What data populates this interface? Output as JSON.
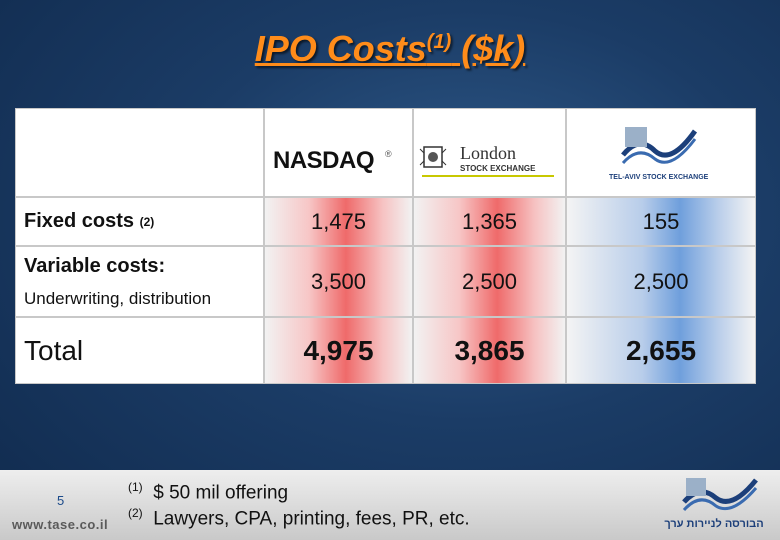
{
  "slide": {
    "title_main": "IPO Costs",
    "title_sup": "(1)",
    "title_tail": " ($k)",
    "page_number": "5",
    "website": "www.tase.co.il"
  },
  "logos": {
    "nasdaq": "NASDAQ",
    "london_line1": "London",
    "london_line2": "STOCK EXCHANGE",
    "telaviv": "TEL-AVIV STOCK EXCHANGE",
    "tase_hebrew": "הבורסה לניירות ערך"
  },
  "rows": {
    "fixed": {
      "label": "Fixed costs",
      "sup": "(2)",
      "values": [
        "1,475",
        "1,365",
        "155"
      ]
    },
    "variable": {
      "label": "Variable costs:",
      "sublabel": "Underwriting, distribution",
      "values": [
        "3,500",
        "2,500",
        "2,500"
      ]
    },
    "total": {
      "label": "Total",
      "values": [
        "4,975",
        "3,865",
        "2,655"
      ]
    }
  },
  "footnotes": [
    {
      "mark": "(1)",
      "text": "$ 50 mil offering"
    },
    {
      "mark": "(2)",
      "text": "Lawyers, CPA, printing, fees, PR, etc."
    }
  ],
  "colors": {
    "title": "#ff8c1a",
    "nasdaq_col": "#ef6a6a",
    "tase_col": "#6f9fdc"
  }
}
